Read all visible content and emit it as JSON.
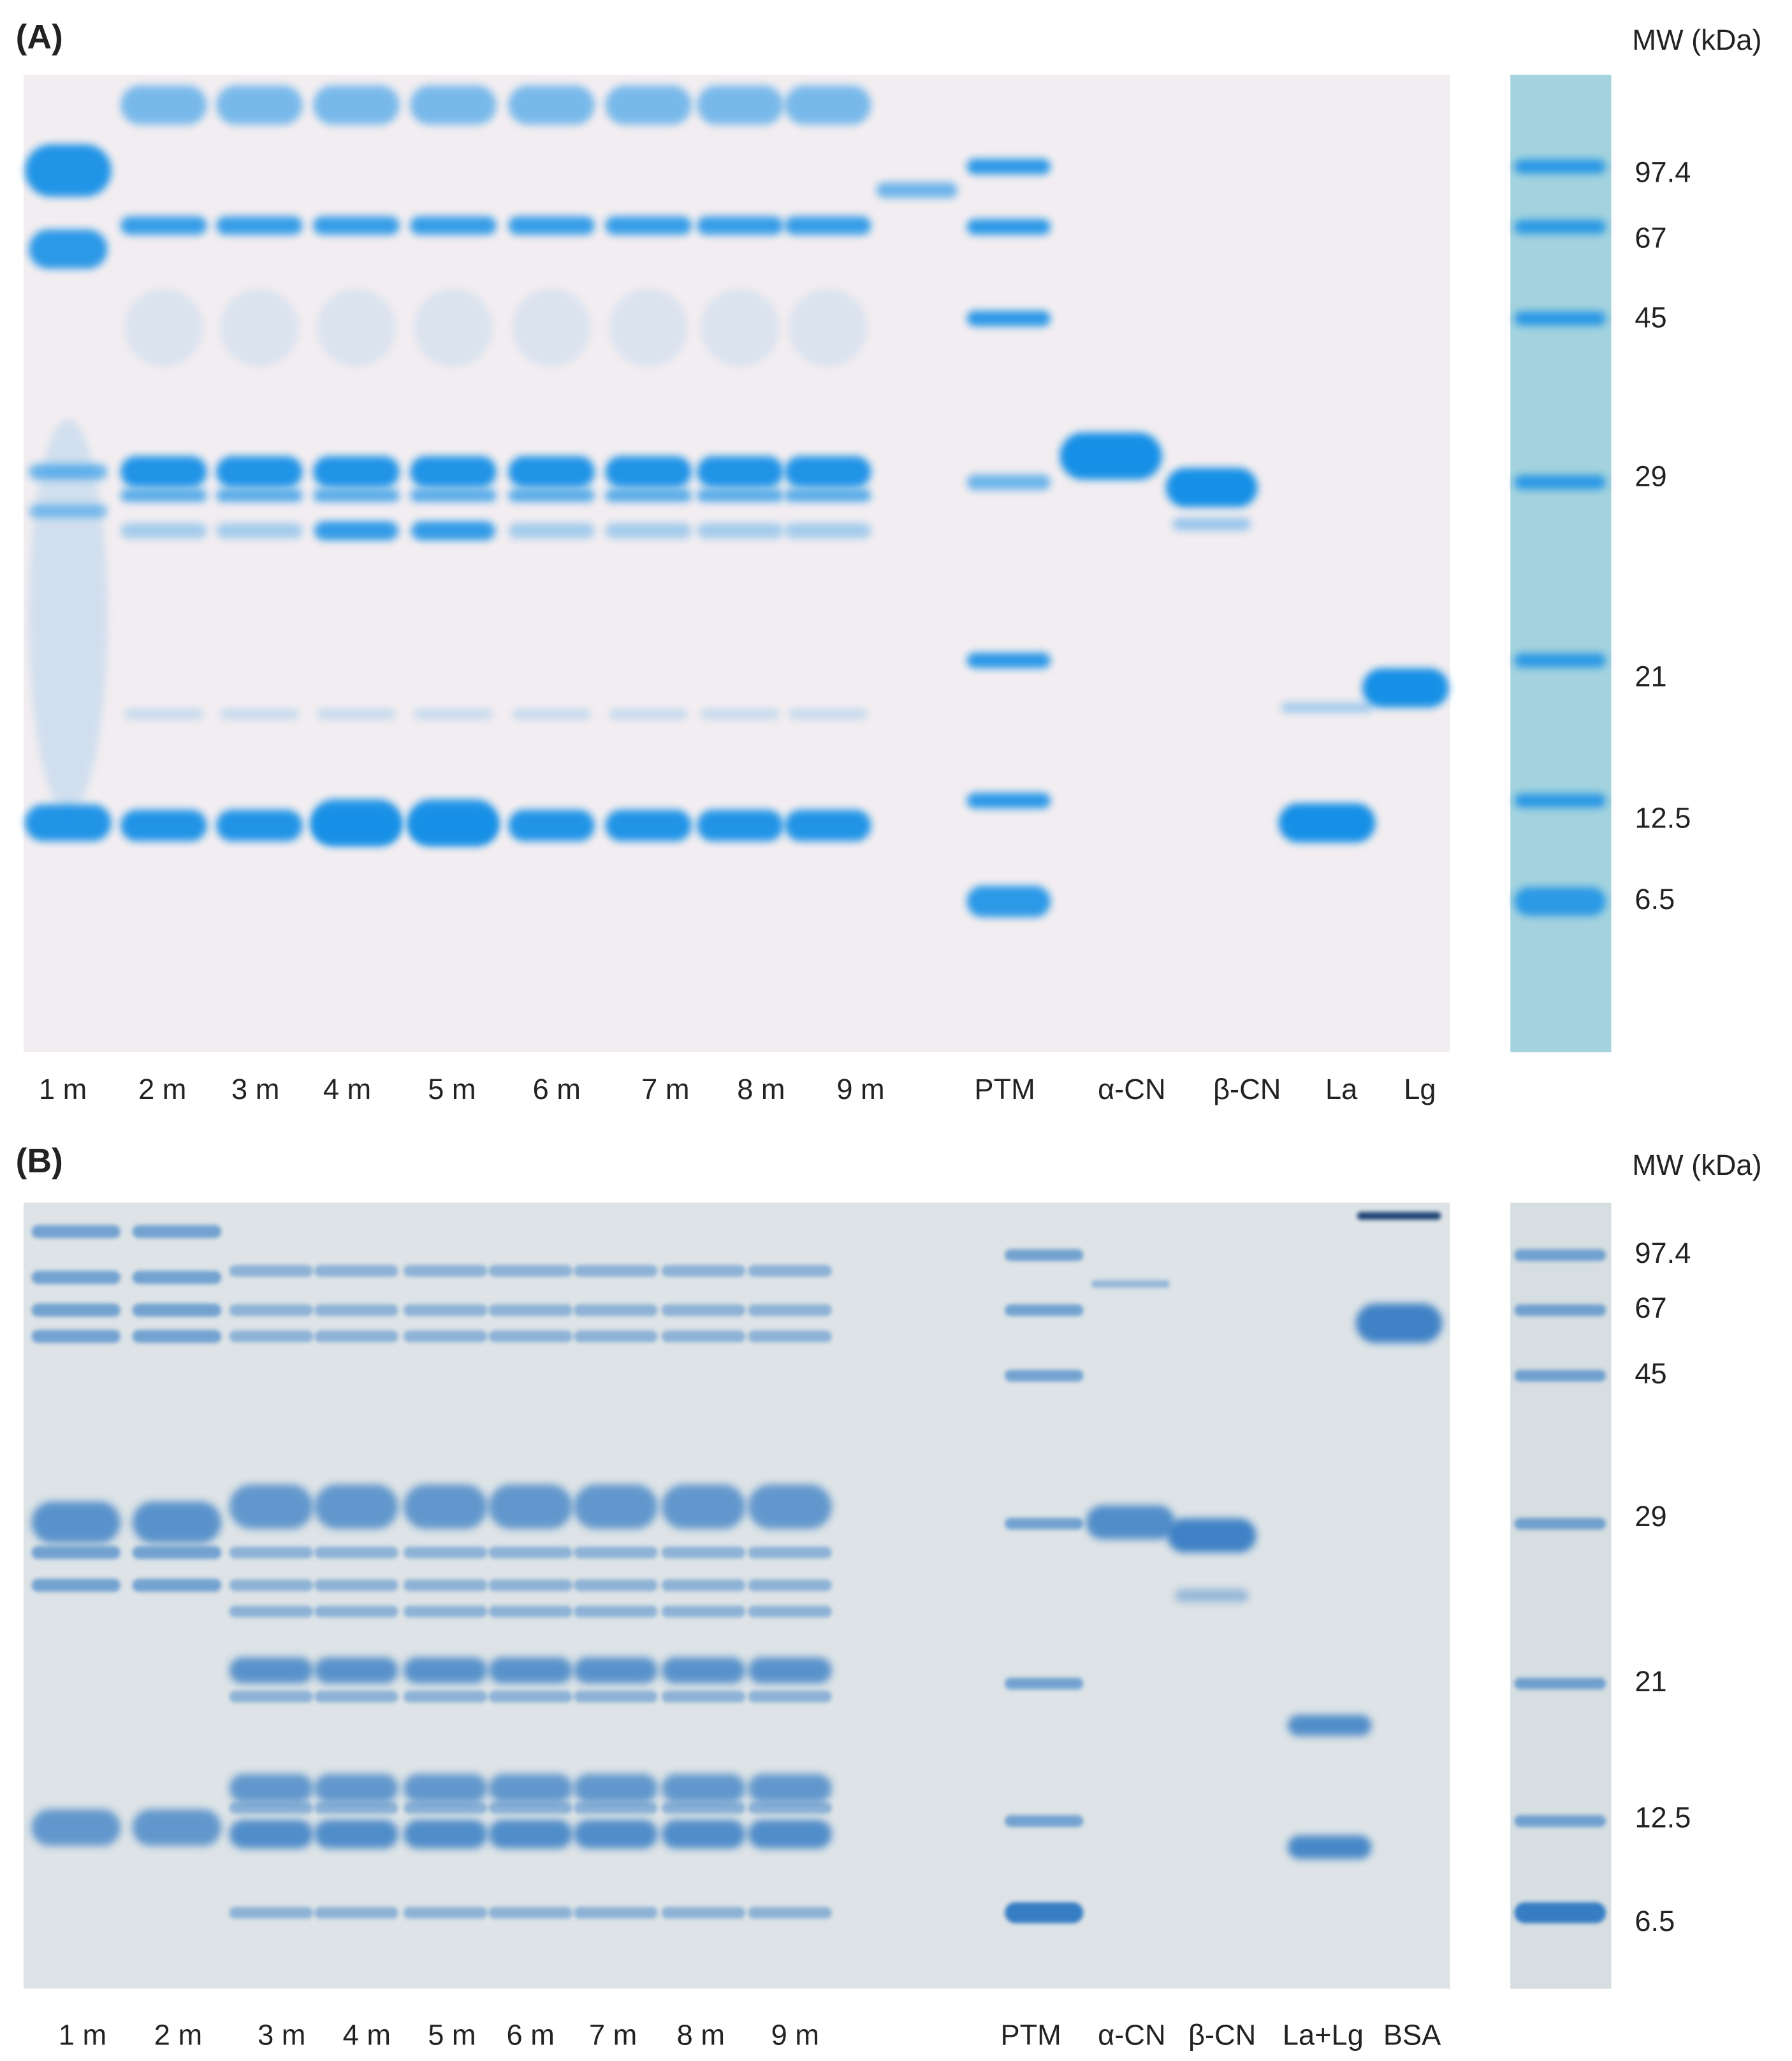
{
  "panels": [
    {
      "label": "(A)",
      "mw_header": "MW (kDa)",
      "mw_labels": [
        "97.4",
        "67",
        "45",
        "29",
        "21",
        "12.5",
        "6.5"
      ],
      "lanes": [
        "1 m",
        "2 m",
        "3 m",
        "4 m",
        "5 m",
        "6 m",
        "7 m",
        "8 m",
        "9 m",
        "PTM",
        "α-CN",
        "β-CN",
        "La",
        "Lg"
      ]
    },
    {
      "label": "(B)",
      "mw_header": "MW (kDa)",
      "mw_labels": [
        "97.4",
        "67",
        "45",
        "29",
        "21",
        "12.5",
        "6.5"
      ],
      "lanes": [
        "1 m",
        "2 m",
        "3 m",
        "4 m",
        "5 m",
        "6 m",
        "7 m",
        "8 m",
        "9 m",
        "PTM",
        "α-CN",
        "β-CN",
        "La+Lg",
        "BSA"
      ]
    }
  ]
}
